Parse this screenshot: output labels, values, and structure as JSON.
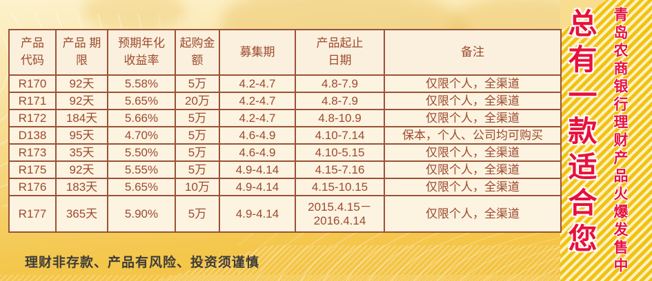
{
  "slogan_main": "总有一款适合您",
  "slogan_sub": "青岛农商银行理财产品火爆发售中",
  "disclaimer": "理财非存款、产品有风险、投资须谨慎",
  "table": {
    "headers": [
      "产品\n代码",
      "产品 期\n限",
      "预期年化\n收益率",
      "起购金\n额",
      "募集期",
      "产品起止\n日期",
      "备注"
    ],
    "rows": [
      [
        "R170",
        "92天",
        "5.58%",
        "5万",
        "4.2-4.7",
        "4.8-7.9",
        "仅限个人，全渠道"
      ],
      [
        "R171",
        "92天",
        "5.65%",
        "20万",
        "4.2-4.7",
        "4.8-7.9",
        "仅限个人，全渠道"
      ],
      [
        "R172",
        "184天",
        "5.66%",
        "5万",
        "4.2-4.7",
        "4.8-10.9",
        "仅限个人，全渠道"
      ],
      [
        "D138",
        "95天",
        "4.70%",
        "5万",
        "4.6-4.9",
        "4.10-7.14",
        "保本，个人、公司均可购买"
      ],
      [
        "R173",
        "35天",
        "5.50%",
        "5万",
        "4.6-4.9",
        "4.10-5.15",
        "仅限个人，全渠道"
      ],
      [
        "R175",
        "92天",
        "5.55%",
        "5万",
        "4.9-4.14",
        "4.15-7.16",
        "仅限个人，全渠道"
      ],
      [
        "R176",
        "183天",
        "5.65%",
        "10万",
        "4.9-4.14",
        "4.15-10.15",
        "仅限个人，全渠道"
      ],
      [
        "R177",
        "365天",
        "5.90%",
        "5万",
        "4.9-4.14",
        "2015.4.15－\n2016.4.14",
        "仅限个人，全渠道"
      ]
    ]
  },
  "colors": {
    "accent_red": "#e8103c",
    "gold_background": "#f4c74e",
    "stripe_gold": "#f2c113",
    "table_border": "#9a5134",
    "table_text": "#9c4a2e",
    "table_cell_background": "#fcf3e1",
    "disclaimer_text": "#3d3c3a"
  }
}
